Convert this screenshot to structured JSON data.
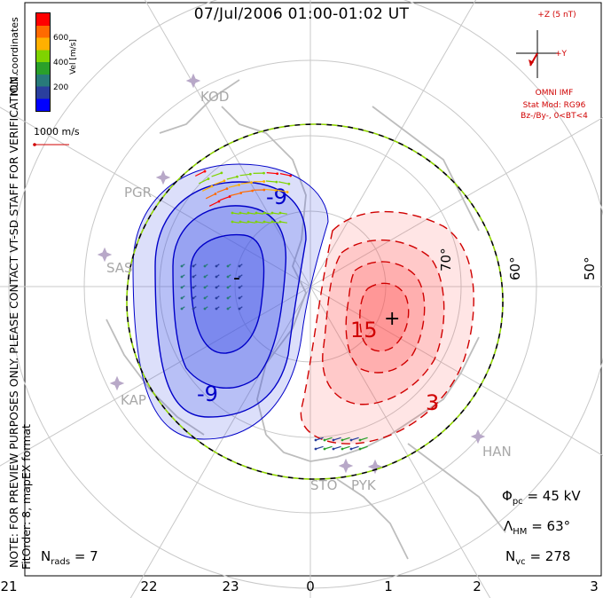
{
  "title": "07/Jul/2006 01:00-01:02 UT",
  "verification_note": "FOR PREVIEW PURPOSES ONLY. PLEASE CONTACT VT-SD STAFF FOR VERIFICATION.",
  "note_prefix": "NOTE:",
  "fitorder_text": "FitOrder: 8, mapEX format",
  "coord_label": "MLT coordinates",
  "colorbar": {
    "label": "Vel [m/s]",
    "ticks": [
      "600",
      "400",
      "200"
    ],
    "colors": [
      "#ff0000",
      "#ff6a00",
      "#ffb000",
      "#7fd300",
      "#2aa02a",
      "#287a7a",
      "#2a3f9e",
      "#0000ff"
    ]
  },
  "scale_vector": {
    "label": "1000 m/s",
    "color": "#d00000"
  },
  "imf_panel": {
    "z_label": "+Z (5 nT)",
    "y_label": "+Y",
    "source": "OMNI IMF",
    "stat_mod": "Stat Mod: RG96",
    "condition": "Bz-/By-, 0<BT<4",
    "color": "#d00000"
  },
  "stats": {
    "phi_pc_symbol": "Φ",
    "phi_pc_sub": "pc",
    "phi_pc_value": "= 45 kV",
    "lambda_hm_symbol": "Λ",
    "lambda_hm_sub": "HM",
    "lambda_hm_value": "= 63°",
    "n_vc_symbol": "N",
    "n_vc_sub": "vc",
    "n_vc_value": "= 278",
    "n_rads_symbol": "N",
    "n_rads_sub": "rads",
    "n_rads_value": "= 7"
  },
  "mlt_axis": [
    "21",
    "22",
    "23",
    "0",
    "1",
    "2",
    "3"
  ],
  "latitude_labels": [
    "50°",
    "60°",
    "70°"
  ],
  "radar_sites": [
    "KOD",
    "PGR",
    "SAS",
    "KAP",
    "HAN",
    "STO",
    "PYK"
  ],
  "potential_contours": {
    "negative_cell_labels": [
      "-9",
      "-9",
      "-"
    ],
    "positive_cell_labels": [
      "15",
      "3",
      "+"
    ],
    "negative_color": "#0000c8",
    "positive_color": "#d00000",
    "negative_fill": "#3c50e6",
    "positive_fill": "#ff5050"
  },
  "map_colors": {
    "grid": "#c8c8c8",
    "coast": "#bdbdbd",
    "boundary_dash_a": "#000000",
    "boundary_dash_b": "#8fd400"
  }
}
